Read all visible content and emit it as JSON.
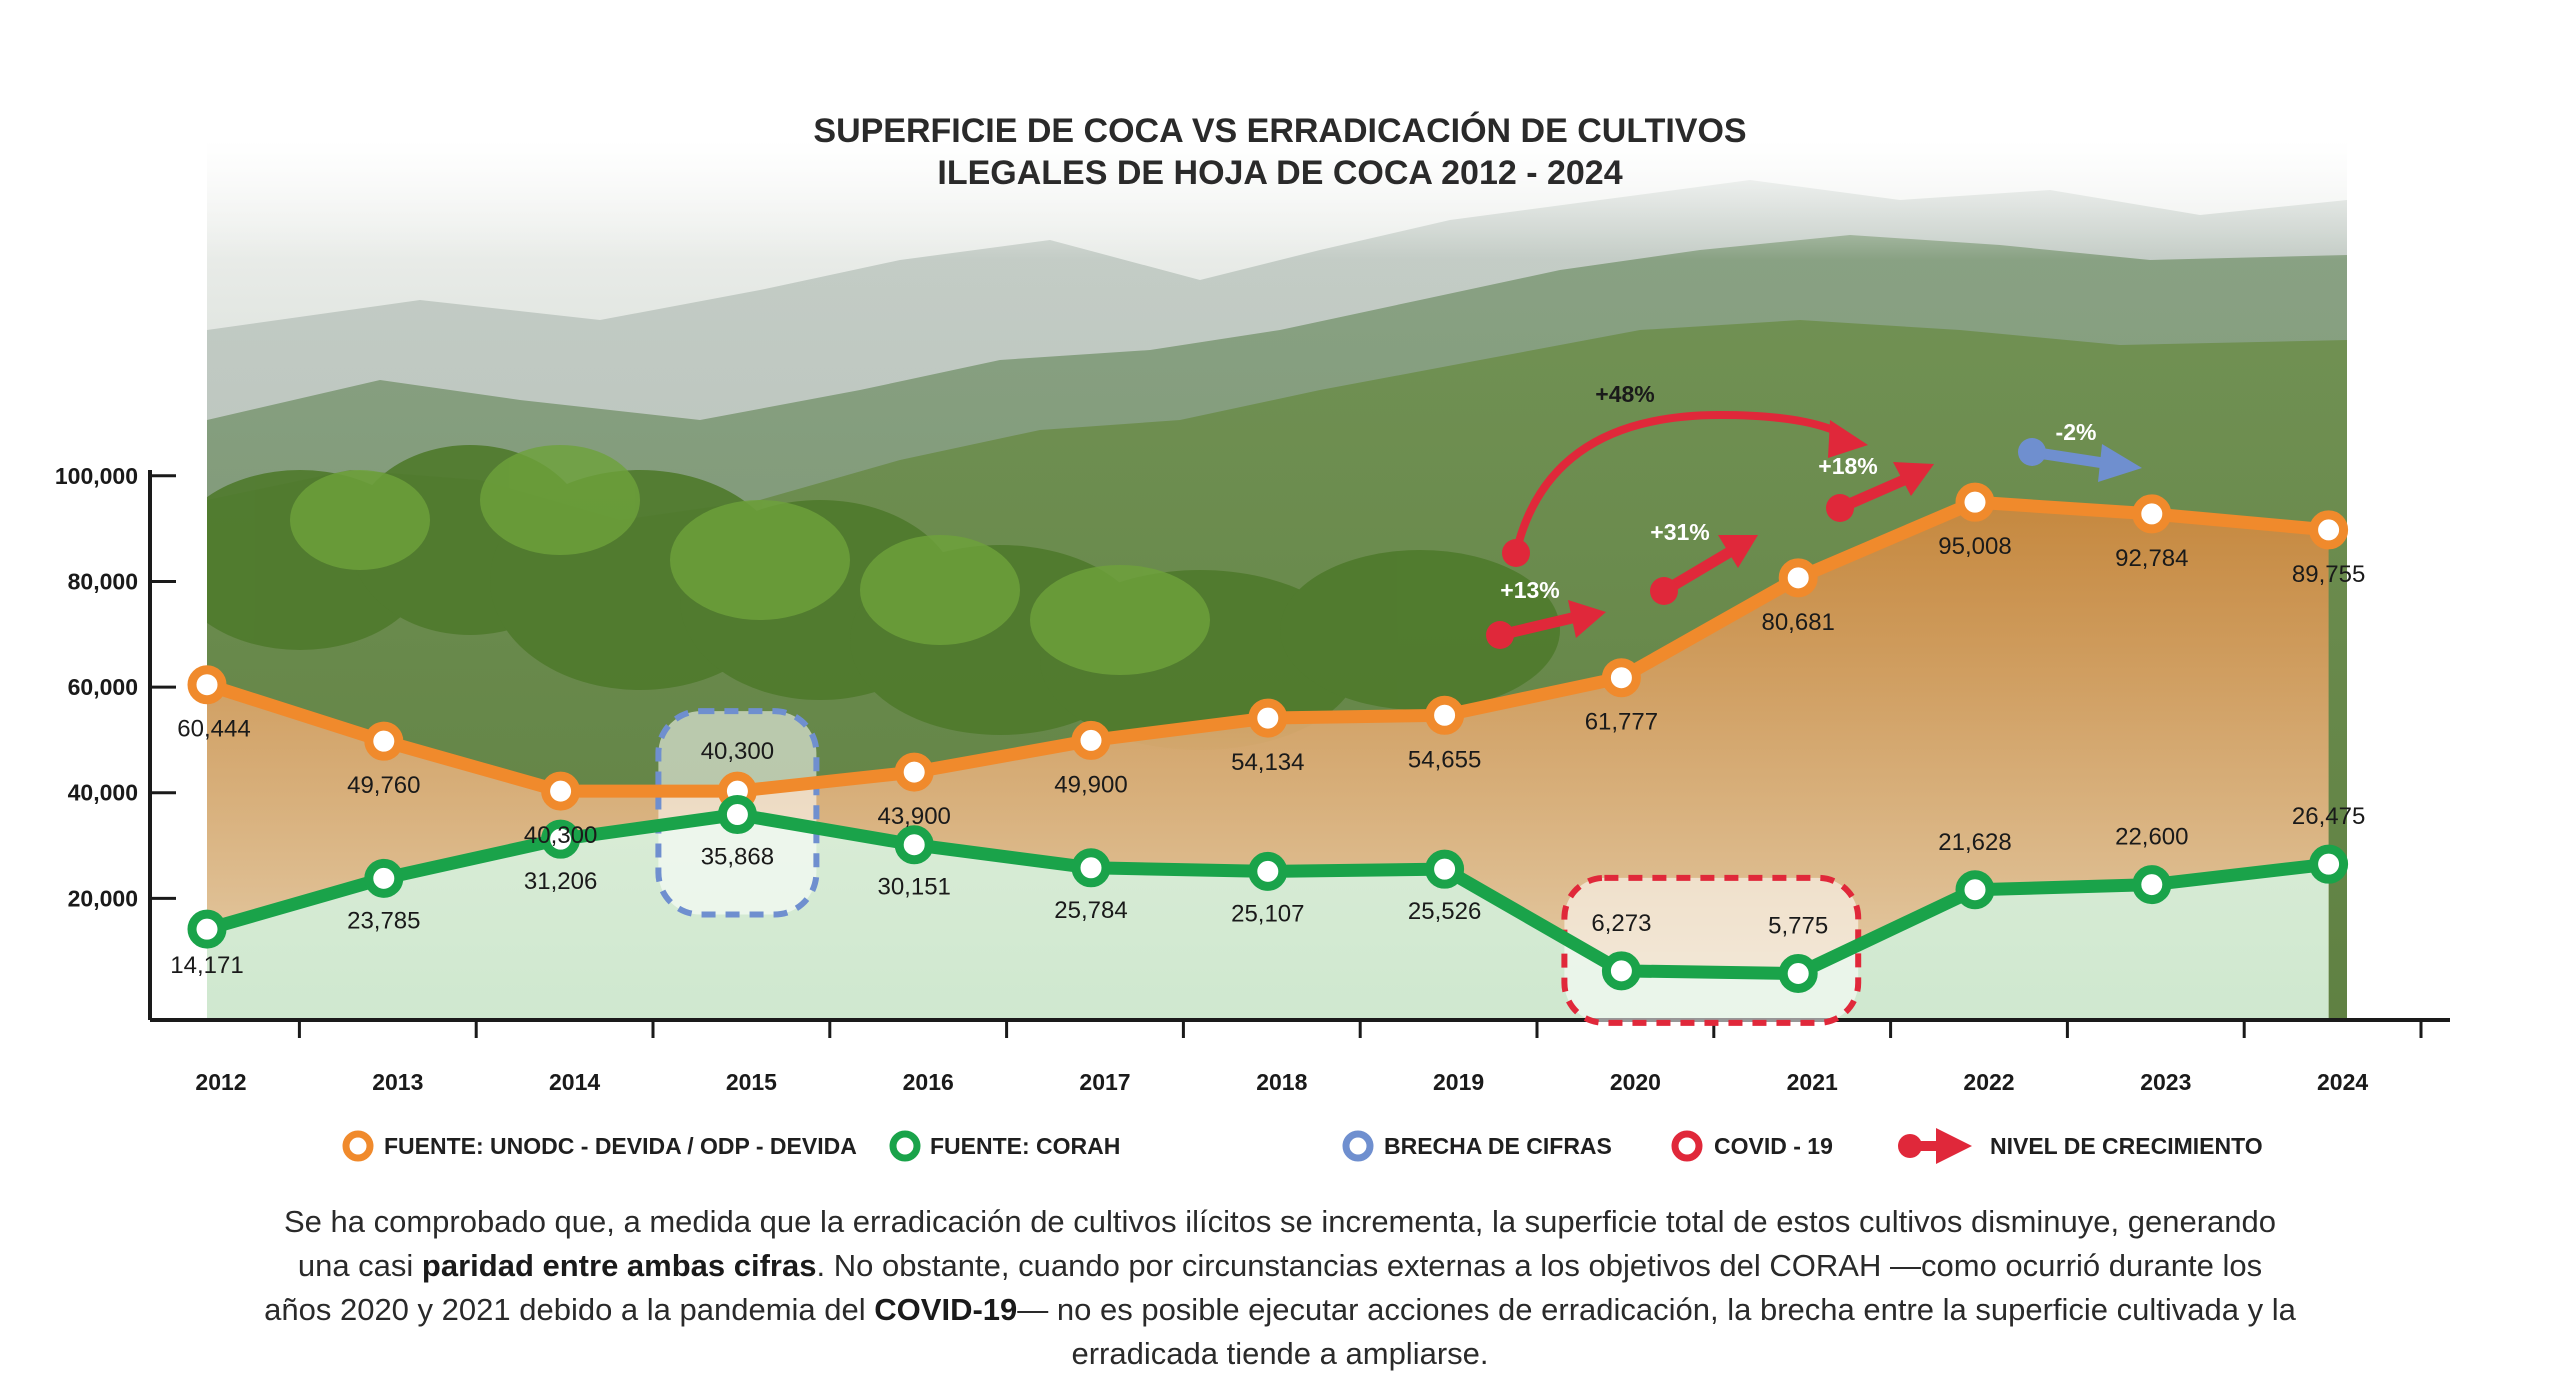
{
  "chart_data": {
    "type": "line",
    "title": [
      "SUPERFICIE DE COCA VS ERRADICACIÓN DE CULTIVOS",
      "ILEGALES DE HOJA DE COCA 2012 - 2024"
    ],
    "x": [
      "2012",
      "2013",
      "2014",
      "2015",
      "2016",
      "2017",
      "2018",
      "2019",
      "2020",
      "2021",
      "2022",
      "2023",
      "2024"
    ],
    "y_ticks": [
      "20,000",
      "40,000",
      "60,000",
      "80,000",
      "100,000"
    ],
    "y_tick_values": [
      20000,
      40000,
      60000,
      80000,
      100000
    ],
    "ylim": [
      0,
      100000
    ],
    "series": [
      {
        "name": "FUENTE: UNODC - DEVIDA / ODP - DEVIDA",
        "color": "#f08a2c",
        "values": [
          60444,
          49760,
          40300,
          40300,
          43900,
          49900,
          54134,
          54655,
          61777,
          80681,
          95008,
          92784,
          89755
        ],
        "labels": [
          "60,444",
          "49,760",
          "40,300",
          "40,300",
          "43,900",
          "49,900",
          "54,134",
          "54,655",
          "61,777",
          "80,681",
          "95,008",
          "92,784",
          "89,755"
        ]
      },
      {
        "name": "FUENTE: CORAH",
        "color": "#1aa34a",
        "values": [
          14171,
          23785,
          31206,
          35868,
          30151,
          25784,
          25107,
          25526,
          6273,
          5775,
          21628,
          22600,
          26475
        ],
        "labels": [
          "14,171",
          "23,785",
          "31,206",
          "35,868",
          "30,151",
          "25,784",
          "25,107",
          "25,526",
          "6,273",
          "5,775",
          "21,628",
          "22,600",
          "26,475"
        ]
      }
    ],
    "annotations": [
      {
        "text": "+13%",
        "type": "growth"
      },
      {
        "text": "+48%",
        "type": "growth"
      },
      {
        "text": "+31%",
        "type": "growth"
      },
      {
        "text": "+18%",
        "type": "growth"
      },
      {
        "text": "-2%",
        "type": "decline"
      }
    ],
    "highlights": [
      {
        "name": "BRECHA DE CIFRAS",
        "years": [
          "2015"
        ],
        "color": "#6f8fcf"
      },
      {
        "name": "COVID - 19",
        "years": [
          "2020",
          "2021"
        ],
        "color": "#e0283a"
      }
    ],
    "legend": [
      {
        "label": "FUENTE: UNODC - DEVIDA / ODP - DEVIDA",
        "color": "#f08a2c",
        "icon": "ring-icon"
      },
      {
        "label": "FUENTE: CORAH",
        "color": "#1aa34a",
        "icon": "ring-icon"
      },
      {
        "label": "BRECHA DE CIFRAS",
        "color": "#6f8fcf",
        "icon": "ring-icon"
      },
      {
        "label": "COVID - 19",
        "color": "#e0283a",
        "icon": "ring-icon"
      },
      {
        "label": "NIVEL DE CRECIMIENTO",
        "color": "#e0283a",
        "icon": "growth-arrow-icon"
      }
    ],
    "legend_placement": "bottom"
  },
  "caption": {
    "part1": "Se ha comprobado que, a medida que la erradicación de cultivos ilícitos se incrementa, la superficie total de estos cultivos disminuye, generando una casi ",
    "bold1": "paridad entre ambas cifras",
    "part2": ". No obstante, cuando por circunstancias externas a los objetivos del CORAH —como ocurrió durante los años 2020 y 2021 debido a la pandemia del ",
    "bold2": "COVID-19",
    "part3": "— no es posible ejecutar acciones de erradicación, la brecha entre la superficie cultivada y la erradicada tiende a ampliarse."
  }
}
